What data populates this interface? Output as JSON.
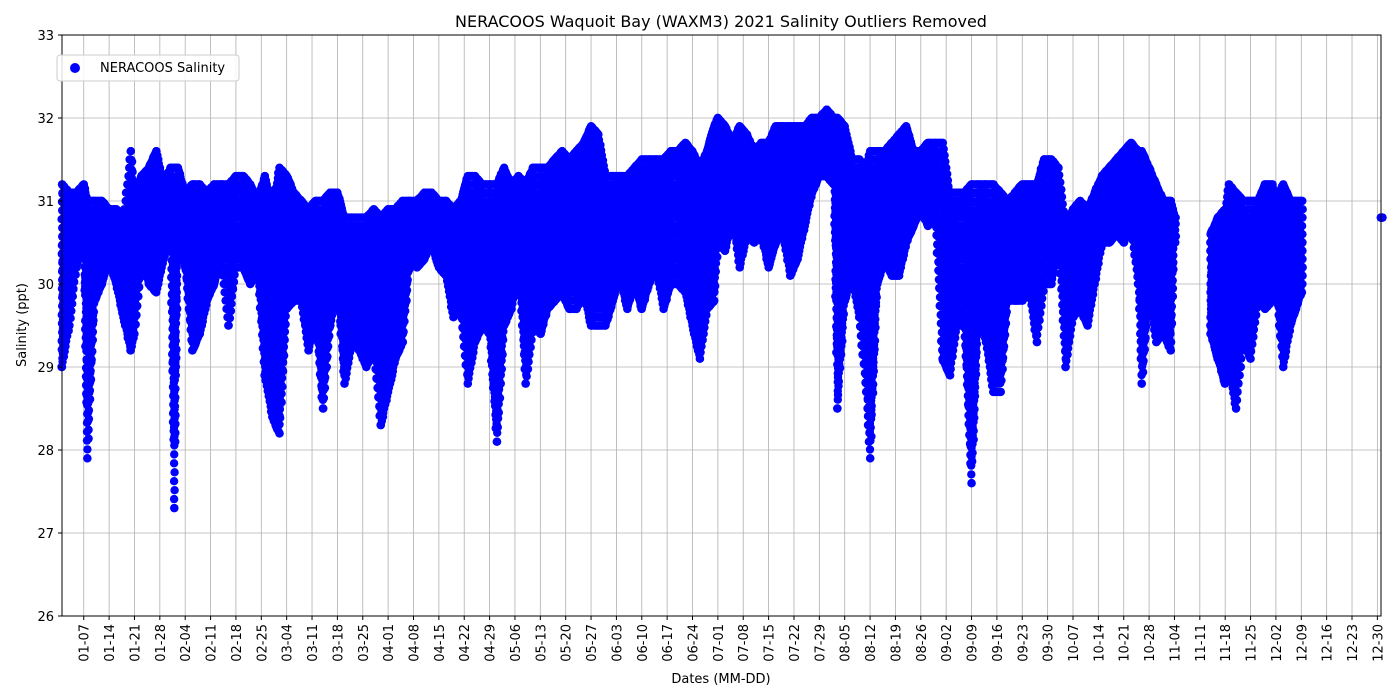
{
  "chart_data": {
    "type": "scatter",
    "title": "NERACOOS Waquoit Bay (WAXM3) 2021 Salinity Outliers Removed",
    "xlabel": "Dates (MM-DD)",
    "ylabel": "Salinity (ppt)",
    "ylim": [
      26,
      33
    ],
    "yticks": [
      26,
      27,
      28,
      29,
      30,
      31,
      32,
      33
    ],
    "xlim": [
      "2021-01-01",
      "2021-12-31"
    ],
    "xticks": [
      "01-07",
      "01-14",
      "01-21",
      "01-28",
      "02-04",
      "02-11",
      "02-18",
      "02-25",
      "03-04",
      "03-11",
      "03-18",
      "03-25",
      "04-01",
      "04-08",
      "04-15",
      "04-22",
      "04-29",
      "05-06",
      "05-13",
      "05-20",
      "05-27",
      "06-03",
      "06-10",
      "06-17",
      "06-24",
      "07-01",
      "07-08",
      "07-15",
      "07-22",
      "07-29",
      "08-05",
      "08-12",
      "08-19",
      "08-26",
      "09-02",
      "09-09",
      "09-16",
      "09-23",
      "09-30",
      "10-07",
      "10-14",
      "10-21",
      "10-28",
      "11-04",
      "11-11",
      "11-18",
      "11-25",
      "12-02",
      "12-09",
      "12-16",
      "12-23",
      "12-30"
    ],
    "grid": true,
    "legend_position": "top-left",
    "colors": {
      "series": "#0000ff"
    },
    "series": [
      {
        "name": "NERACOOS Salinity",
        "daily_ranges": [
          [
            "2021-01-01",
            29.0,
            31.2
          ],
          [
            "2021-01-03",
            29.5,
            31.1
          ],
          [
            "2021-01-05",
            30.2,
            31.1
          ],
          [
            "2021-01-07",
            30.6,
            31.2
          ],
          [
            "2021-01-08",
            27.9,
            31.0
          ],
          [
            "2021-01-10",
            29.8,
            31.0
          ],
          [
            "2021-01-12",
            30.0,
            31.0
          ],
          [
            "2021-01-14",
            30.3,
            30.9
          ],
          [
            "2021-01-16",
            30.0,
            30.9
          ],
          [
            "2021-01-18",
            29.6,
            30.8
          ],
          [
            "2021-01-20",
            29.2,
            31.6
          ],
          [
            "2021-01-21",
            29.4,
            31.1
          ],
          [
            "2021-01-23",
            30.3,
            31.3
          ],
          [
            "2021-01-25",
            30.0,
            31.4
          ],
          [
            "2021-01-27",
            29.9,
            31.6
          ],
          [
            "2021-01-29",
            30.3,
            31.2
          ],
          [
            "2021-01-31",
            30.6,
            31.4
          ],
          [
            "2021-02-01",
            27.3,
            31.4
          ],
          [
            "2021-02-02",
            30.5,
            31.4
          ],
          [
            "2021-02-04",
            30.2,
            31.1
          ],
          [
            "2021-02-06",
            29.2,
            31.2
          ],
          [
            "2021-02-08",
            29.4,
            31.2
          ],
          [
            "2021-02-10",
            29.8,
            31.1
          ],
          [
            "2021-02-12",
            30.0,
            31.2
          ],
          [
            "2021-02-14",
            30.3,
            31.2
          ],
          [
            "2021-02-16",
            29.5,
            31.2
          ],
          [
            "2021-02-18",
            30.2,
            31.3
          ],
          [
            "2021-02-20",
            30.2,
            31.3
          ],
          [
            "2021-02-22",
            30.0,
            31.2
          ],
          [
            "2021-02-24",
            30.2,
            31.0
          ],
          [
            "2021-02-26",
            28.9,
            31.3
          ],
          [
            "2021-02-28",
            28.4,
            30.9
          ],
          [
            "2021-03-02",
            28.2,
            31.4
          ],
          [
            "2021-03-04",
            29.7,
            31.3
          ],
          [
            "2021-03-06",
            29.8,
            31.1
          ],
          [
            "2021-03-08",
            29.8,
            31.0
          ],
          [
            "2021-03-10",
            29.2,
            30.9
          ],
          [
            "2021-03-12",
            29.6,
            31.0
          ],
          [
            "2021-03-14",
            28.5,
            31.0
          ],
          [
            "2021-03-16",
            29.5,
            31.1
          ],
          [
            "2021-03-18",
            30.0,
            31.1
          ],
          [
            "2021-03-20",
            28.8,
            30.8
          ],
          [
            "2021-03-22",
            29.3,
            30.8
          ],
          [
            "2021-03-24",
            29.2,
            30.8
          ],
          [
            "2021-03-26",
            29.0,
            30.8
          ],
          [
            "2021-03-28",
            29.2,
            30.9
          ],
          [
            "2021-03-30",
            28.3,
            30.8
          ],
          [
            "2021-04-01",
            28.7,
            30.9
          ],
          [
            "2021-04-03",
            29.1,
            30.9
          ],
          [
            "2021-04-05",
            29.3,
            31.0
          ],
          [
            "2021-04-07",
            30.3,
            31.0
          ],
          [
            "2021-04-09",
            30.2,
            31.0
          ],
          [
            "2021-04-11",
            30.3,
            31.1
          ],
          [
            "2021-04-13",
            30.5,
            31.1
          ],
          [
            "2021-04-15",
            30.2,
            31.0
          ],
          [
            "2021-04-17",
            30.1,
            31.0
          ],
          [
            "2021-04-19",
            29.6,
            30.9
          ],
          [
            "2021-04-21",
            29.7,
            31.0
          ],
          [
            "2021-04-23",
            28.8,
            31.3
          ],
          [
            "2021-04-25",
            29.3,
            31.3
          ],
          [
            "2021-04-27",
            29.5,
            31.2
          ],
          [
            "2021-04-29",
            29.4,
            31.2
          ],
          [
            "2021-05-01",
            28.1,
            31.2
          ],
          [
            "2021-05-03",
            29.5,
            31.4
          ],
          [
            "2021-05-05",
            29.7,
            31.2
          ],
          [
            "2021-05-07",
            30.2,
            31.3
          ],
          [
            "2021-05-09",
            28.8,
            31.2
          ],
          [
            "2021-05-11",
            29.5,
            31.4
          ],
          [
            "2021-05-13",
            29.4,
            31.4
          ],
          [
            "2021-05-15",
            29.7,
            31.4
          ],
          [
            "2021-05-17",
            29.8,
            31.5
          ],
          [
            "2021-05-19",
            29.9,
            31.6
          ],
          [
            "2021-05-21",
            29.7,
            31.5
          ],
          [
            "2021-05-23",
            29.7,
            31.6
          ],
          [
            "2021-05-25",
            29.9,
            31.7
          ],
          [
            "2021-05-27",
            29.5,
            31.9
          ],
          [
            "2021-05-29",
            29.5,
            31.8
          ],
          [
            "2021-05-31",
            29.5,
            31.3
          ],
          [
            "2021-06-02",
            29.8,
            31.3
          ],
          [
            "2021-06-04",
            30.1,
            31.3
          ],
          [
            "2021-06-06",
            29.7,
            31.3
          ],
          [
            "2021-06-08",
            30.0,
            31.4
          ],
          [
            "2021-06-10",
            29.7,
            31.5
          ],
          [
            "2021-06-12",
            30.0,
            31.5
          ],
          [
            "2021-06-14",
            30.2,
            31.5
          ],
          [
            "2021-06-16",
            29.7,
            31.5
          ],
          [
            "2021-06-18",
            30.0,
            31.6
          ],
          [
            "2021-06-20",
            30.0,
            31.6
          ],
          [
            "2021-06-22",
            29.9,
            31.7
          ],
          [
            "2021-06-24",
            29.5,
            31.6
          ],
          [
            "2021-06-26",
            29.1,
            31.4
          ],
          [
            "2021-06-28",
            29.7,
            31.6
          ],
          [
            "2021-06-30",
            29.8,
            31.9
          ],
          [
            "2021-07-01",
            30.5,
            32.0
          ],
          [
            "2021-07-03",
            30.4,
            31.9
          ],
          [
            "2021-07-05",
            30.8,
            31.7
          ],
          [
            "2021-07-07",
            30.2,
            31.9
          ],
          [
            "2021-07-09",
            30.6,
            31.8
          ],
          [
            "2021-07-11",
            30.5,
            31.6
          ],
          [
            "2021-07-13",
            30.6,
            31.7
          ],
          [
            "2021-07-15",
            30.2,
            31.7
          ],
          [
            "2021-07-17",
            30.5,
            31.9
          ],
          [
            "2021-07-19",
            30.6,
            31.9
          ],
          [
            "2021-07-21",
            30.1,
            31.9
          ],
          [
            "2021-07-23",
            30.3,
            31.9
          ],
          [
            "2021-07-25",
            30.7,
            31.9
          ],
          [
            "2021-07-27",
            31.1,
            32.0
          ],
          [
            "2021-07-29",
            31.3,
            32.0
          ],
          [
            "2021-07-31",
            31.3,
            32.1
          ],
          [
            "2021-08-02",
            31.2,
            32.0
          ],
          [
            "2021-08-03",
            28.5,
            32.0
          ],
          [
            "2021-08-05",
            29.8,
            31.9
          ],
          [
            "2021-08-07",
            30.1,
            31.5
          ],
          [
            "2021-08-09",
            29.6,
            31.5
          ],
          [
            "2021-08-11",
            28.7,
            31.4
          ],
          [
            "2021-08-12",
            27.9,
            31.6
          ],
          [
            "2021-08-14",
            30.0,
            31.6
          ],
          [
            "2021-08-16",
            30.3,
            31.6
          ],
          [
            "2021-08-18",
            30.1,
            31.7
          ],
          [
            "2021-08-20",
            30.1,
            31.8
          ],
          [
            "2021-08-22",
            30.5,
            31.9
          ],
          [
            "2021-08-24",
            30.7,
            31.6
          ],
          [
            "2021-08-26",
            30.9,
            31.6
          ],
          [
            "2021-08-28",
            30.7,
            31.7
          ],
          [
            "2021-08-30",
            30.8,
            31.7
          ],
          [
            "2021-09-01",
            29.1,
            31.7
          ],
          [
            "2021-09-03",
            28.9,
            31.1
          ],
          [
            "2021-09-05",
            29.5,
            31.1
          ],
          [
            "2021-09-07",
            29.5,
            31.1
          ],
          [
            "2021-09-09",
            27.6,
            31.2
          ],
          [
            "2021-09-11",
            29.7,
            31.2
          ],
          [
            "2021-09-13",
            29.3,
            31.2
          ],
          [
            "2021-09-15",
            28.7,
            31.2
          ],
          [
            "2021-09-17",
            28.7,
            31.1
          ],
          [
            "2021-09-19",
            29.8,
            31.0
          ],
          [
            "2021-09-21",
            29.8,
            31.1
          ],
          [
            "2021-09-23",
            29.8,
            31.2
          ],
          [
            "2021-09-25",
            29.9,
            31.2
          ],
          [
            "2021-09-27",
            29.3,
            31.2
          ],
          [
            "2021-09-29",
            30.0,
            31.5
          ],
          [
            "2021-10-01",
            30.0,
            31.5
          ],
          [
            "2021-10-03",
            30.5,
            31.4
          ],
          [
            "2021-10-05",
            29.0,
            30.7
          ],
          [
            "2021-10-07",
            29.6,
            30.9
          ],
          [
            "2021-10-09",
            29.7,
            31.0
          ],
          [
            "2021-10-11",
            29.5,
            30.9
          ],
          [
            "2021-10-13",
            30.0,
            31.1
          ],
          [
            "2021-10-15",
            30.5,
            31.3
          ],
          [
            "2021-10-17",
            30.5,
            31.4
          ],
          [
            "2021-10-19",
            30.6,
            31.5
          ],
          [
            "2021-10-21",
            30.5,
            31.6
          ],
          [
            "2021-10-23",
            30.7,
            31.7
          ],
          [
            "2021-10-25",
            30.0,
            31.6
          ],
          [
            "2021-10-26",
            28.8,
            31.6
          ],
          [
            "2021-10-28",
            29.9,
            31.4
          ],
          [
            "2021-10-30",
            29.3,
            31.2
          ],
          [
            "2021-11-01",
            29.4,
            31.0
          ],
          [
            "2021-11-03",
            29.2,
            31.0
          ],
          [
            "2021-11-04",
            30.5,
            30.8
          ],
          [
            "2021-11-14",
            29.4,
            30.6
          ],
          [
            "2021-11-16",
            29.1,
            30.8
          ],
          [
            "2021-11-18",
            28.8,
            30.9
          ],
          [
            "2021-11-19",
            29.0,
            31.2
          ],
          [
            "2021-11-21",
            28.5,
            31.1
          ],
          [
            "2021-11-23",
            29.3,
            31.0
          ],
          [
            "2021-11-25",
            29.1,
            31.0
          ],
          [
            "2021-11-27",
            29.8,
            31.0
          ],
          [
            "2021-11-29",
            29.7,
            31.2
          ],
          [
            "2021-12-01",
            29.8,
            31.2
          ],
          [
            "2021-12-02",
            30.0,
            31.0
          ],
          [
            "2021-12-04",
            29.0,
            31.2
          ],
          [
            "2021-12-06",
            29.5,
            31.0
          ],
          [
            "2021-12-09",
            29.9,
            31.0
          ],
          [
            "2021-12-31",
            30.8,
            30.8
          ]
        ]
      }
    ]
  }
}
